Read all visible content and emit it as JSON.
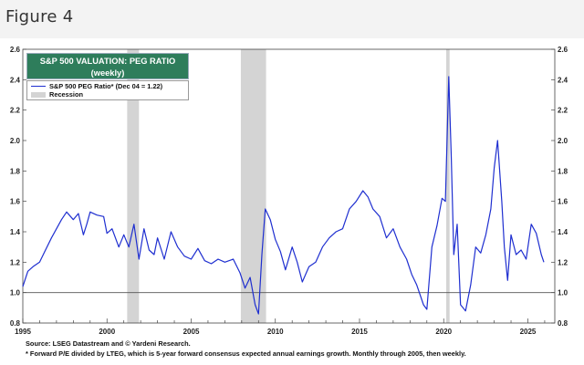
{
  "figure_label": "Figure 4",
  "colors": {
    "series": "#1f2fd0",
    "recession": "#d4d4d4",
    "title_bg": "#2e7d5b",
    "reference_line": "#555555"
  },
  "chart_data": {
    "type": "line",
    "title": "S&P 500 VALUATION: PEG RATIO",
    "subtitle": "(weekly)",
    "xlim": [
      1995,
      2026.6
    ],
    "ylim": [
      0.8,
      2.6
    ],
    "x_ticks": [
      1995,
      2000,
      2005,
      2010,
      2015,
      2020,
      2025
    ],
    "x_tick_labels": [
      "1995",
      "2000",
      "2005",
      "2010",
      "2015",
      "2020",
      "2025"
    ],
    "y_ticks": [
      0.8,
      1.0,
      1.2,
      1.4,
      1.6,
      1.8,
      2.0,
      2.2,
      2.4,
      2.6
    ],
    "y_tick_labels": [
      "0.8",
      "1.0",
      "1.2",
      "1.4",
      "1.6",
      "1.8",
      "2.0",
      "2.2",
      "2.4",
      "2.6"
    ],
    "y_axis_both_sides": true,
    "reference_line_y": 1.0,
    "legend": {
      "position": "top-left",
      "series_label": "S&P 500 PEG Ratio* (Dec 04 = 1.22)",
      "recession_label": "Recession"
    },
    "recessions": [
      [
        2001.2,
        2001.9
      ],
      [
        2007.95,
        2009.45
      ],
      [
        2020.15,
        2020.35
      ]
    ],
    "series": [
      {
        "name": "S&P 500 PEG Ratio",
        "x": [
          1995.0,
          1995.3,
          1995.6,
          1996.0,
          1996.3,
          1996.7,
          1997.0,
          1997.3,
          1997.6,
          1998.0,
          1998.3,
          1998.6,
          1998.8,
          1999.0,
          1999.4,
          1999.8,
          2000.0,
          2000.3,
          2000.7,
          2001.0,
          2001.3,
          2001.6,
          2001.9,
          2002.2,
          2002.5,
          2002.8,
          2003.0,
          2003.4,
          2003.8,
          2004.2,
          2004.6,
          2005.0,
          2005.4,
          2005.8,
          2006.2,
          2006.6,
          2007.0,
          2007.5,
          2007.9,
          2008.2,
          2008.5,
          2008.8,
          2009.0,
          2009.2,
          2009.4,
          2009.7,
          2010.0,
          2010.3,
          2010.6,
          2011.0,
          2011.3,
          2011.6,
          2012.0,
          2012.4,
          2012.8,
          2013.2,
          2013.6,
          2014.0,
          2014.4,
          2014.8,
          2015.2,
          2015.5,
          2015.8,
          2016.2,
          2016.6,
          2017.0,
          2017.4,
          2017.8,
          2018.1,
          2018.4,
          2018.8,
          2019.0,
          2019.3,
          2019.6,
          2019.9,
          2020.1,
          2020.3,
          2020.45,
          2020.6,
          2020.8,
          2021.0,
          2021.3,
          2021.6,
          2021.9,
          2022.2,
          2022.5,
          2022.8,
          2023.0,
          2023.2,
          2023.45,
          2023.6,
          2023.8,
          2024.0,
          2024.3,
          2024.6,
          2024.9,
          2025.2,
          2025.5,
          2025.8,
          2025.95
        ],
        "y": [
          1.04,
          1.14,
          1.17,
          1.2,
          1.27,
          1.36,
          1.42,
          1.48,
          1.53,
          1.48,
          1.52,
          1.38,
          1.45,
          1.53,
          1.51,
          1.5,
          1.39,
          1.42,
          1.3,
          1.38,
          1.3,
          1.45,
          1.22,
          1.42,
          1.28,
          1.25,
          1.36,
          1.22,
          1.4,
          1.3,
          1.24,
          1.22,
          1.29,
          1.21,
          1.19,
          1.22,
          1.2,
          1.22,
          1.13,
          1.03,
          1.1,
          0.92,
          0.86,
          1.25,
          1.55,
          1.48,
          1.35,
          1.27,
          1.15,
          1.3,
          1.2,
          1.07,
          1.17,
          1.2,
          1.3,
          1.36,
          1.4,
          1.42,
          1.55,
          1.6,
          1.67,
          1.63,
          1.55,
          1.5,
          1.36,
          1.42,
          1.3,
          1.22,
          1.12,
          1.05,
          0.92,
          0.89,
          1.3,
          1.44,
          1.62,
          1.6,
          2.42,
          1.9,
          1.25,
          1.45,
          0.92,
          0.88,
          1.05,
          1.3,
          1.26,
          1.38,
          1.55,
          1.82,
          2.0,
          1.6,
          1.3,
          1.08,
          1.38,
          1.25,
          1.28,
          1.22,
          1.45,
          1.39,
          1.25,
          1.2
        ]
      }
    ]
  },
  "footnotes": {
    "source": "Source: LSEG Datastream and © Yardeni Research.",
    "note": "* Forward P/E divided by LTEG, which is 5-year forward consensus expected annual earnings growth. Monthly through 2005, then weekly."
  }
}
